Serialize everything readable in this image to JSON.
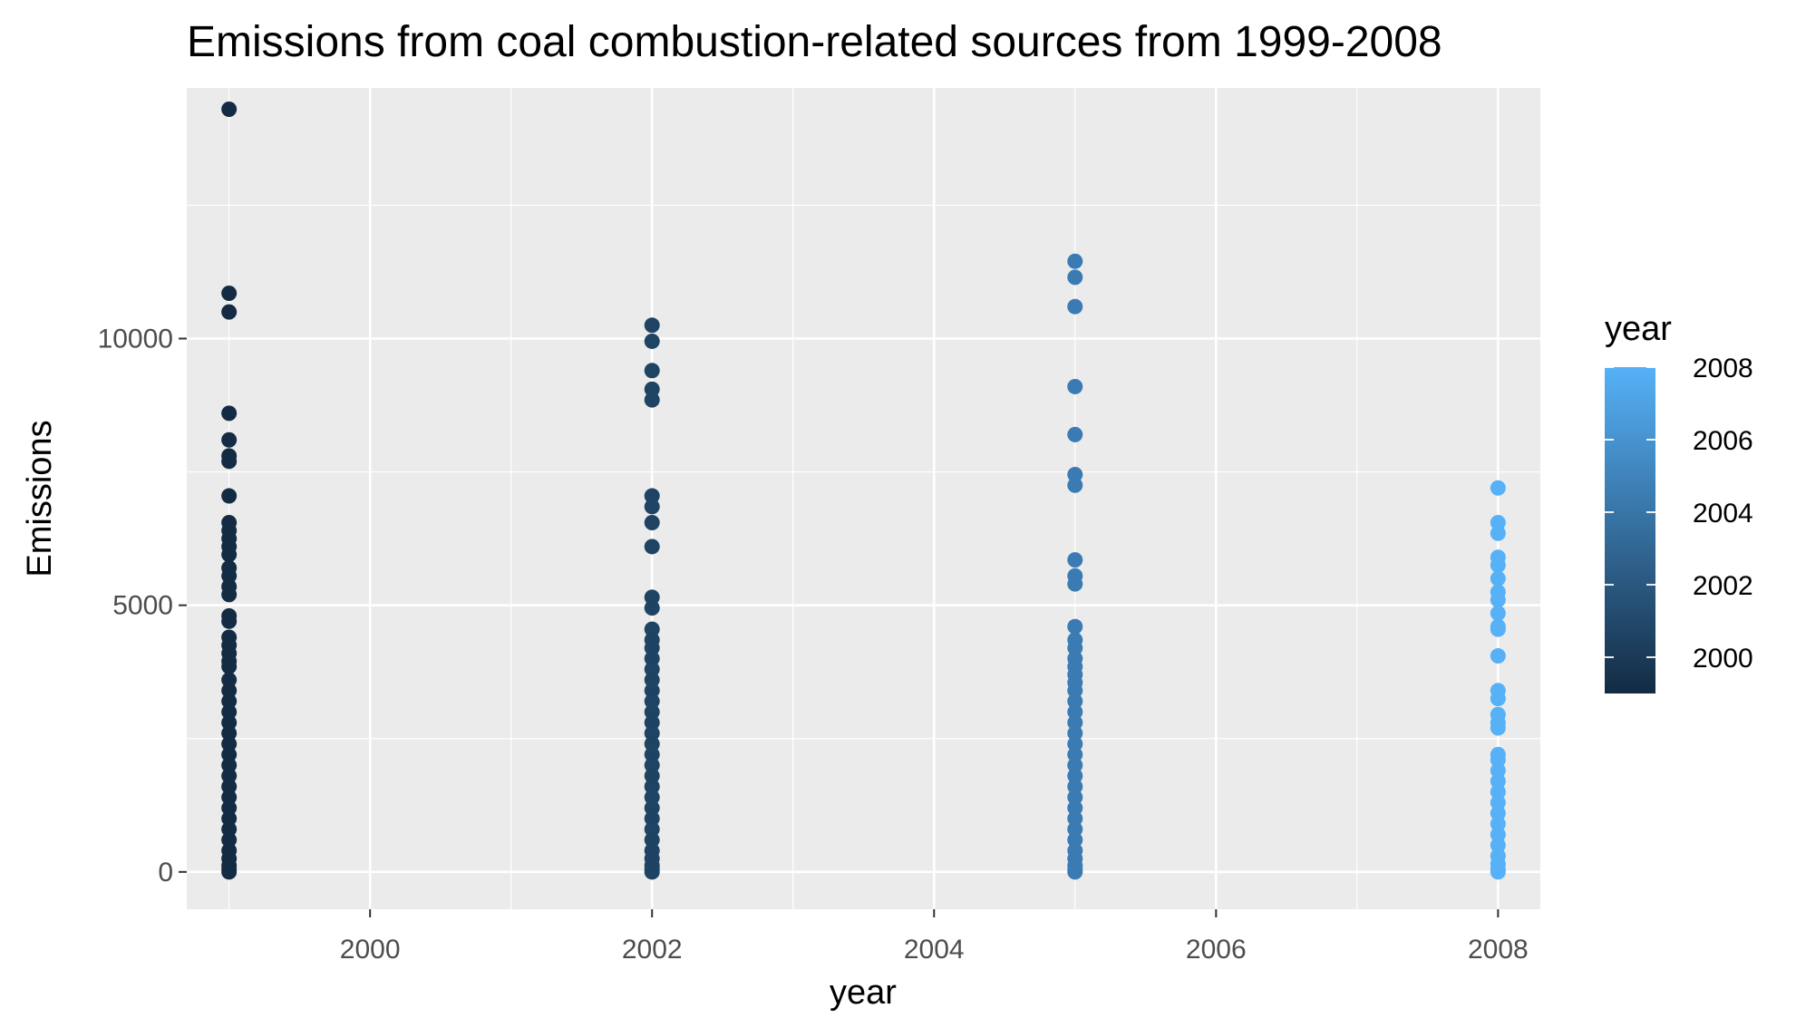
{
  "chart_data": {
    "type": "scatter",
    "title": "Emissions from coal combustion-related sources from 1999-2008",
    "xlabel": "year",
    "ylabel": "Emissions",
    "xlim": [
      1998.7,
      2008.3
    ],
    "ylim": [
      -700,
      14700
    ],
    "x_ticks": [
      2000,
      2002,
      2004,
      2006,
      2008
    ],
    "y_ticks": [
      0,
      5000,
      10000
    ],
    "grid": true,
    "legend": {
      "title": "year",
      "position": "right",
      "type": "colorbar",
      "range": [
        1999,
        2008
      ],
      "ticks": [
        2000,
        2002,
        2004,
        2006,
        2008
      ],
      "color_low": "#132B43",
      "color_high": "#56B1F7"
    },
    "series": [
      {
        "x": 1999,
        "color": "#132B43",
        "values": [
          14300,
          10850,
          10500,
          8600,
          8100,
          7800,
          7700,
          7050,
          6550,
          6400,
          6250,
          6100,
          5950,
          5700,
          5550,
          5350,
          5200,
          4800,
          4700,
          4400,
          4250,
          4100,
          3950,
          3850,
          3600,
          3400,
          3200,
          3000,
          2800,
          2600,
          2400,
          2200,
          2000,
          1800,
          1600,
          1400,
          1200,
          1000,
          800,
          600,
          400,
          250,
          120,
          50,
          0
        ]
      },
      {
        "x": 2002,
        "color": "#1E4363",
        "values": [
          10250,
          9950,
          9400,
          9050,
          8850,
          7050,
          6850,
          6550,
          6100,
          5150,
          4950,
          4550,
          4350,
          4200,
          4000,
          3800,
          3600,
          3400,
          3200,
          3000,
          2800,
          2600,
          2400,
          2200,
          2000,
          1800,
          1600,
          1400,
          1200,
          1000,
          800,
          600,
          400,
          250,
          120,
          50,
          0
        ]
      },
      {
        "x": 2005,
        "color": "#3A7BB4",
        "values": [
          11450,
          11150,
          10600,
          9100,
          8200,
          7450,
          7250,
          5850,
          5550,
          5400,
          4600,
          4350,
          4200,
          4000,
          3850,
          3700,
          3550,
          3400,
          3200,
          3000,
          2800,
          2600,
          2400,
          2200,
          2000,
          1800,
          1600,
          1400,
          1200,
          1000,
          800,
          600,
          400,
          250,
          120,
          50,
          0
        ]
      },
      {
        "x": 2008,
        "color": "#56B1F7",
        "values": [
          7200,
          6550,
          6350,
          5900,
          5750,
          5500,
          5250,
          5100,
          4850,
          4600,
          4550,
          4050,
          3400,
          3250,
          2950,
          2800,
          2700,
          2200,
          2100,
          1900,
          1700,
          1500,
          1300,
          1100,
          900,
          700,
          500,
          300,
          150,
          50,
          0
        ]
      }
    ]
  }
}
